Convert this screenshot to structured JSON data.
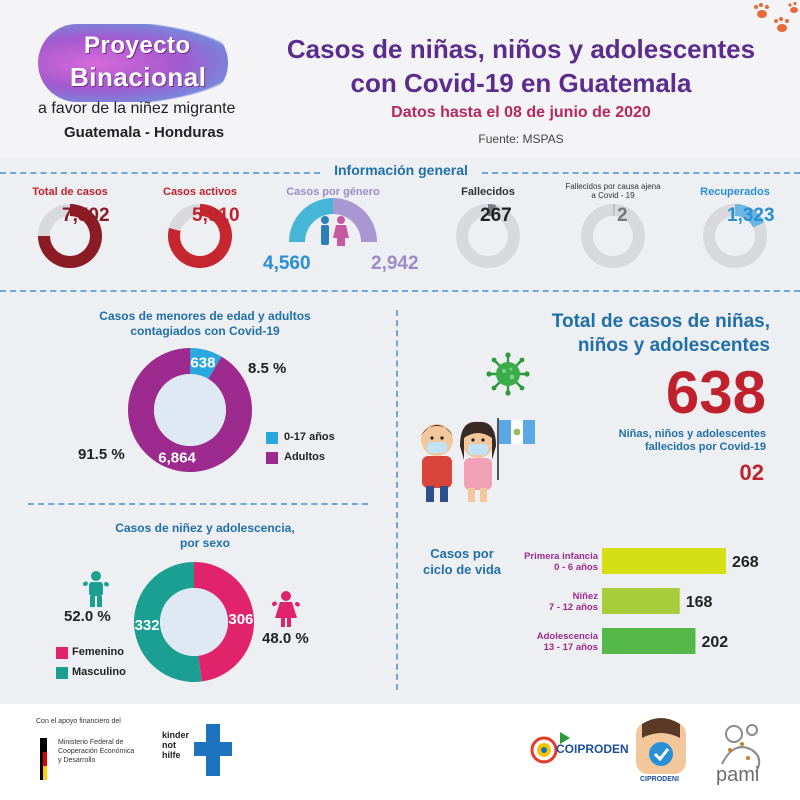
{
  "header": {
    "logo_line1": "Proyecto",
    "logo_line2": "Binacional",
    "logo_line3": "a favor de la niñez migrante",
    "logo_line4": "Guatemala - Honduras",
    "title_line1": "Casos de niñas, niños y adolescentes",
    "title_line2": "con Covid-19 en Guatemala",
    "date": "Datos hasta el 08 de junio de 2020",
    "source": "Fuente: MSPAS"
  },
  "general": {
    "title": "Información general",
    "kpis": [
      {
        "label": "Total de casos",
        "value": "7,502",
        "color": "#8b1c24",
        "fill": 0.75
      },
      {
        "label": "Casos activos",
        "value": "5,910",
        "color": "#c6262f",
        "fill": 0.79
      },
      {
        "label": "Casos por género",
        "value_left": "4,560",
        "value_right": "2,942",
        "color_left": "#45b6d6",
        "color_right": "#a997d2"
      },
      {
        "label": "Fallecidos",
        "value": "267",
        "color": "#777a80",
        "fill": 0.04
      },
      {
        "label": "Fallecidos por causa ajena a Covid - 19",
        "value": "2",
        "color": "#b9bcc1",
        "fill": 0.01
      },
      {
        "label": "Recuperados",
        "value": "1,323",
        "color": "#6ab6e0",
        "fill": 0.18
      }
    ]
  },
  "minors_adults": {
    "title_line1": "Casos de menores de edad y adultos",
    "title_line2": "contagiados con Covid-19",
    "pct_minors": "8.5 %",
    "pct_adults": "91.5 %",
    "legend_minors": "0-17 años",
    "legend_adults": "Adultos",
    "label_minors": "638",
    "label_adults": "6,864"
  },
  "total_minors": {
    "title_line1": "Total de casos de niñas,",
    "title_line2": "niños y adolescentes",
    "value": "638",
    "deaths_label_line1": "Niñas, niños y adolescentes",
    "deaths_label_line2": "fallecidos por Covid-19",
    "deaths_value": "02"
  },
  "by_sex": {
    "title_line1": "Casos de niñez y adolescencia,",
    "title_line2": "por sexo",
    "pct_male": "52.0 %",
    "pct_female": "48.0 %",
    "label_male": "332",
    "label_female": "306",
    "legend_female": "Femenino",
    "legend_male": "Masculino"
  },
  "life_cycle": {
    "title_line1": "Casos por",
    "title_line2": "ciclo de vida"
  },
  "chart_data": [
    {
      "type": "pie",
      "title": "Casos de menores de edad y adultos contagiados con Covid-19",
      "categories": [
        "0-17 años",
        "Adultos"
      ],
      "values": [
        638,
        6864
      ],
      "percent_labels": [
        "8.5 %",
        "91.5 %"
      ],
      "colors": [
        "#2aa7de",
        "#9c2a8f"
      ],
      "legend": "bottom-right"
    },
    {
      "type": "pie",
      "title": "Casos de niñez y adolescencia, por sexo",
      "categories": [
        "Femenino",
        "Masculino"
      ],
      "values": [
        306,
        332
      ],
      "percent_labels": [
        "48.0 %",
        "52.0 %"
      ],
      "colors": [
        "#e0236a",
        "#1a9f92"
      ],
      "legend": "bottom-left"
    },
    {
      "type": "bar",
      "orientation": "horizontal",
      "title": "Casos por ciclo de vida",
      "categories": [
        "Primera infancia 0 - 6 años",
        "Niñez 7 - 12 años",
        "Adolescencia 13 - 17 años"
      ],
      "category_lines": [
        [
          "Primera infancia",
          "0 - 6 años"
        ],
        [
          "Niñez",
          "7 - 12 años"
        ],
        [
          "Adolescencia",
          "13 - 17 años"
        ]
      ],
      "values": [
        268,
        168,
        202
      ],
      "colors": [
        "#d6de14",
        "#a6cd3a",
        "#54b948"
      ]
    }
  ],
  "footer": {
    "support": "Con el apoyo financiero del",
    "ministry_line1": "Ministerio Federal de",
    "ministry_line2": "Cooperación Económica",
    "ministry_line3": "y Desarrollo",
    "knh_line1": "kinder",
    "knh_line2": "not",
    "knh_line3": "hilfe",
    "coiproden": "COIPRODEN",
    "ciprodeni": "CIPRODENI",
    "pami": "pami"
  }
}
